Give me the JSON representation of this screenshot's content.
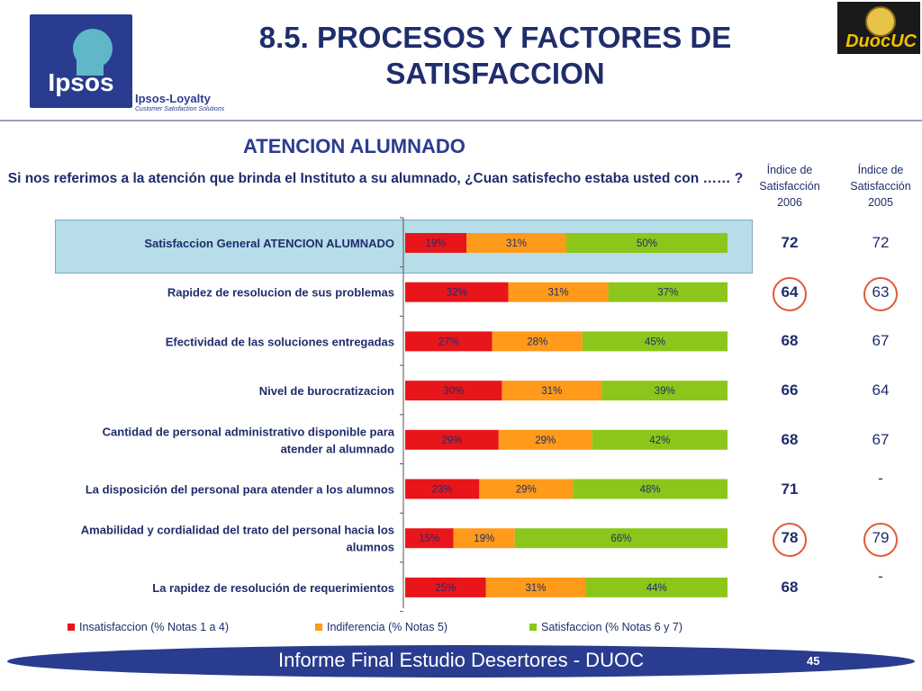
{
  "header": {
    "logo_text": "Ipsos",
    "brand_name": "Ipsos-Loyalty",
    "brand_sub": "Customer Satisfaction Solutions",
    "title_line1": "8.5. PROCESOS Y FACTORES DE",
    "title_line2": "SATISFACCION",
    "duoc_logo_text": "DuocUC"
  },
  "subtitle": "ATENCION ALUMNADO",
  "question": "Si nos referimos a la atención que brinda el Instituto a su alumnado, ¿Cuan satisfecho estaba usted con …… ?",
  "index_columns": [
    {
      "label_line1": "Índice de",
      "label_line2": "Satisfacción",
      "year": "2006"
    },
    {
      "label_line1": "Índice de",
      "label_line2": "Satisfacción",
      "year": "2005"
    }
  ],
  "colors": {
    "insatisfaccion": "#e8161b",
    "indiferencia": "#ff9a1a",
    "satisfaccion": "#8cc61a",
    "highlight": "#b6dde8",
    "navy": "#1f2d6b",
    "ring": "#e05a38"
  },
  "chart_data": {
    "type": "bar",
    "orientation": "horizontal",
    "stacked": true,
    "categories": [
      "Satisfaccion General ATENCION ALUMNADO",
      "Rapidez de resolucion de sus problemas",
      "Efectividad de las soluciones entregadas",
      "Nivel de burocratizacion",
      "Cantidad de personal administrativo disponible para atender al alumnado",
      "La disposición del personal para atender a los alumnos",
      "Amabilidad y cordialidad del trato del personal hacia los alumnos",
      "La rapidez de resolución de requerimientos"
    ],
    "category_lines": [
      [
        "Satisfaccion General ATENCION ALUMNADO"
      ],
      [
        "Rapidez de resolucion de sus problemas"
      ],
      [
        "Efectividad de las soluciones entregadas"
      ],
      [
        "Nivel de burocratizacion"
      ],
      [
        "Cantidad de personal administrativo disponible para",
        "atender al alumnado"
      ],
      [
        "La disposición del personal para atender a los alumnos"
      ],
      [
        "Amabilidad y cordialidad del trato del personal hacia los",
        "alumnos"
      ],
      [
        "La rapidez de resolución de requerimientos"
      ]
    ],
    "series": [
      {
        "name": "Insatisfaccion (% Notas 1 a 4)",
        "values": [
          19,
          32,
          27,
          30,
          29,
          23,
          15,
          25
        ]
      },
      {
        "name": "Indiferencia (% Notas 5)",
        "values": [
          31,
          31,
          28,
          31,
          29,
          29,
          19,
          31
        ]
      },
      {
        "name": "Satisfaccion (% Notas 6 y 7)",
        "values": [
          50,
          37,
          45,
          39,
          42,
          48,
          66,
          44
        ]
      }
    ],
    "value_suffix": "%",
    "xlim": [
      0,
      100
    ],
    "legend_position": "bottom"
  },
  "index_2006": [
    "72",
    "64",
    "68",
    "66",
    "68",
    "71",
    "78",
    "68"
  ],
  "index_2005": [
    "72",
    "63",
    "67",
    "64",
    "67",
    "-",
    "79",
    "-"
  ],
  "footer": {
    "text": "Informe Final Estudio Desertores - DUOC",
    "page": "45"
  }
}
